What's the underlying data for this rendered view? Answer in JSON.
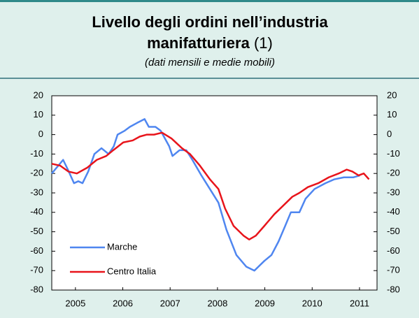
{
  "chart_data": {
    "type": "line",
    "title": "Livello degli ordini nell’industria",
    "title_line2": "manifatturiera",
    "title_note": "(1)",
    "subtitle": "(dati mensili e medie mobili)",
    "xlim": [
      2005,
      2011.87
    ],
    "xticks": [
      {
        "value": 2005.5,
        "label": "2005"
      },
      {
        "value": 2006.5,
        "label": "2006"
      },
      {
        "value": 2007.5,
        "label": "2007"
      },
      {
        "value": 2008.5,
        "label": "2008"
      },
      {
        "value": 2009.5,
        "label": "2009"
      },
      {
        "value": 2010.5,
        "label": "2010"
      },
      {
        "value": 2011.5,
        "label": "2011"
      }
    ],
    "ylim": [
      -80,
      20
    ],
    "yticks": [
      20,
      10,
      0,
      -10,
      -20,
      -30,
      -40,
      -50,
      -60,
      -70,
      -80
    ],
    "grid": false,
    "legend": "lower left",
    "series": [
      {
        "name": "Marche",
        "color": "#4f86f0",
        "x": [
          2005.0,
          2005.24,
          2005.34,
          2005.47,
          2005.56,
          2005.65,
          2005.77,
          2005.9,
          2006.05,
          2006.2,
          2006.31,
          2006.39,
          2006.54,
          2006.65,
          2006.8,
          2006.96,
          2007.05,
          2007.19,
          2007.3,
          2007.39,
          2007.48,
          2007.55,
          2007.7,
          2007.84,
          2007.97,
          2008.16,
          2008.34,
          2008.52,
          2008.69,
          2008.9,
          2009.11,
          2009.28,
          2009.49,
          2009.64,
          2009.79,
          2009.93,
          2010.05,
          2010.23,
          2010.36,
          2010.55,
          2010.78,
          2010.97,
          2011.17,
          2011.37,
          2011.51
        ],
        "values": [
          -20,
          -13,
          -18,
          -25,
          -24,
          -25,
          -19,
          -10,
          -7,
          -10,
          -6,
          0,
          2,
          4,
          6,
          8,
          4,
          4,
          2,
          -2,
          -6,
          -11,
          -8,
          -8,
          -13,
          -21,
          -28,
          -35,
          -49,
          -62,
          -68,
          -70,
          -65,
          -62,
          -55,
          -47,
          -40,
          -40,
          -33,
          -28,
          -25,
          -23,
          -22,
          -22,
          -21
        ]
      },
      {
        "name": "Centro Italia",
        "color": "#e8141b",
        "x": [
          2005.0,
          2005.18,
          2005.35,
          2005.53,
          2005.75,
          2005.95,
          2006.15,
          2006.3,
          2006.51,
          2006.71,
          2006.86,
          2007.01,
          2007.16,
          2007.33,
          2007.53,
          2007.75,
          2007.92,
          2008.13,
          2008.34,
          2008.52,
          2008.66,
          2008.84,
          2009.05,
          2009.17,
          2009.31,
          2009.49,
          2009.7,
          2009.87,
          2010.08,
          2010.23,
          2010.41,
          2010.63,
          2010.85,
          2011.06,
          2011.23,
          2011.35,
          2011.48,
          2011.59,
          2011.7
        ],
        "values": [
          -15,
          -16,
          -19,
          -20,
          -17,
          -13,
          -11,
          -8,
          -4,
          -3,
          -1,
          0,
          0,
          1,
          -2,
          -7,
          -10,
          -16,
          -23,
          -28,
          -38,
          -47,
          -52,
          -54,
          -52,
          -47,
          -41,
          -37,
          -32,
          -30,
          -27,
          -25,
          -22,
          -20,
          -18,
          -19,
          -21,
          -20,
          -23
        ]
      }
    ]
  }
}
